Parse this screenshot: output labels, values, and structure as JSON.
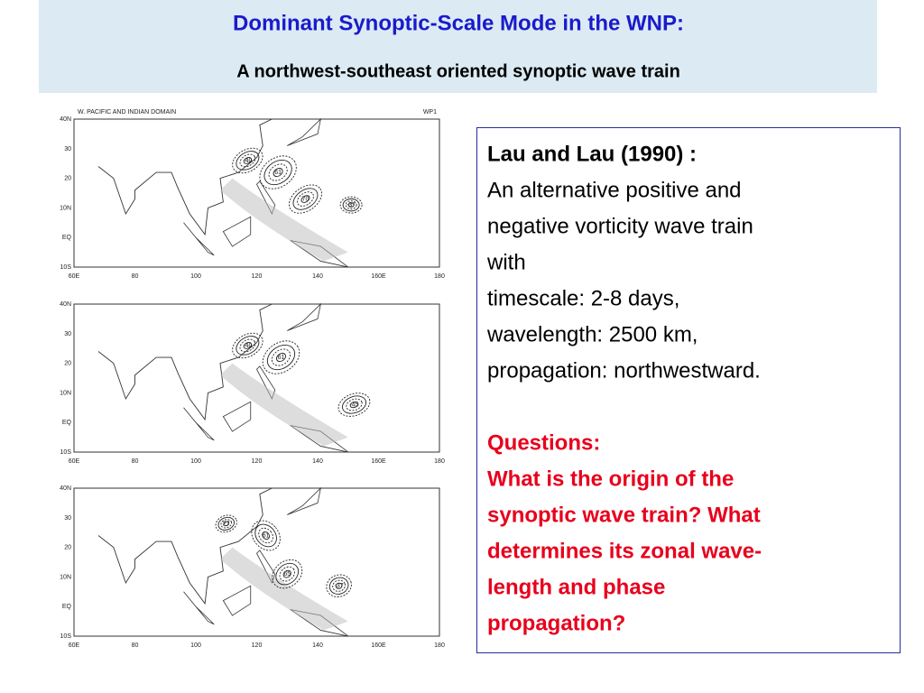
{
  "header": {
    "title": "Dominant Synoptic-Scale Mode in the WNP:",
    "subtitle": "A northwest-southeast oriented synoptic wave train"
  },
  "figure": {
    "caption": "W. PACIFIC AND INDIAN DOMAIN",
    "tag": "WP1",
    "lat_labels": [
      "40N",
      "30",
      "20",
      "10N",
      "EQ",
      "10S"
    ],
    "lon_labels": [
      "60E",
      "80",
      "100",
      "120",
      "140",
      "160E",
      "180"
    ],
    "panels": [
      {
        "contour_labels": [
          "-40",
          "61",
          "70",
          "-37"
        ]
      },
      {
        "contour_labels": [
          "-40",
          "61",
          "-45"
        ]
      },
      {
        "contour_labels": [
          "27",
          "61",
          "65",
          "-37"
        ]
      }
    ]
  },
  "text_box": {
    "heading": "Lau and Lau (1990) :",
    "lines": [
      "An alternative positive and",
      "negative vorticity wave train",
      "with",
      "timescale: 2-8 days,",
      "wavelength: 2500 km,",
      "propagation: northwestward."
    ],
    "questions_heading": "Questions:",
    "questions": [
      "What is the origin of the",
      "synoptic wave train? What",
      "determines its zonal wave-",
      "length and phase",
      "propagation?"
    ]
  }
}
